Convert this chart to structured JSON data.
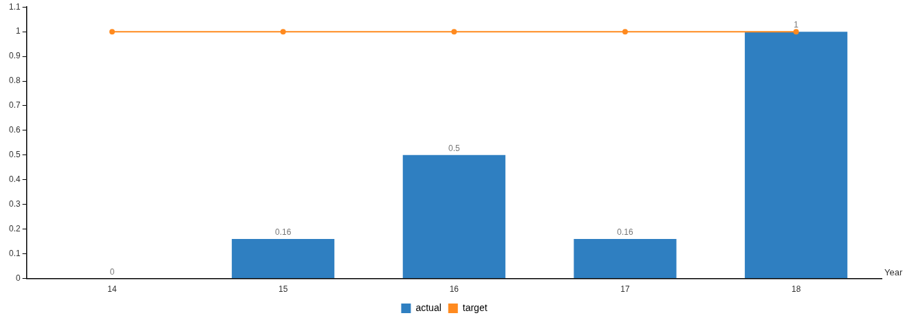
{
  "chart_data": {
    "type": "bar",
    "xlabel": "Year",
    "categories": [
      "14",
      "15",
      "16",
      "17",
      "18"
    ],
    "series": [
      {
        "name": "actual",
        "color": "#2f7fc1",
        "values": [
          0,
          0.16,
          0.5,
          0.16,
          1
        ],
        "value_labels": [
          "0",
          "0.16",
          "0.5",
          "0.16",
          "1"
        ]
      },
      {
        "name": "target",
        "type": "line",
        "color": "#ff8a1f",
        "values": [
          1,
          1,
          1,
          1,
          1
        ]
      }
    ],
    "ylim": [
      0,
      1.1
    ],
    "yticks": [
      0,
      0.1,
      0.2,
      0.3,
      0.4,
      0.5,
      0.6,
      0.7,
      0.8,
      0.9,
      1,
      1.1
    ],
    "grid": false,
    "legend": "bottom",
    "marker": "circle"
  }
}
